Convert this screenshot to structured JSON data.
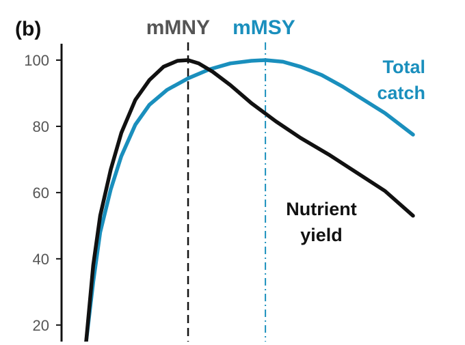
{
  "panel_label": "(b)",
  "colors": {
    "nutrient_yield": "#111111",
    "total_catch": "#1a8fbd",
    "mmny_line": "#111111",
    "mmny_text": "#555555",
    "mmsy_line": "#1a8fbd",
    "axis": "#111111"
  },
  "chart_data": {
    "type": "line",
    "xlabel": "",
    "ylabel": "",
    "xlim": [
      0,
      100
    ],
    "ylim": [
      15,
      100
    ],
    "yticks": [
      20,
      40,
      60,
      80,
      100
    ],
    "grid": false,
    "reference_lines": [
      {
        "label": "mMNY",
        "x": 36,
        "style": "dashed"
      },
      {
        "label": "mMSY",
        "x": 58,
        "style": "dash-dot"
      }
    ],
    "series": [
      {
        "name": "Nutrient yield",
        "label_lines": [
          "Nutrient",
          "yield"
        ],
        "x": [
          7,
          9,
          11,
          14,
          17,
          21,
          25,
          29,
          33,
          36,
          39,
          43,
          48,
          54,
          61,
          68,
          76,
          84,
          92,
          100
        ],
        "y": [
          15,
          38,
          53,
          67,
          78,
          88,
          94,
          98,
          99.8,
          100,
          99,
          96.5,
          92.5,
          87,
          81.5,
          76.5,
          71.5,
          66,
          60.5,
          53
        ]
      },
      {
        "name": "Total catch",
        "label_lines": [
          "Total",
          "catch"
        ],
        "x": [
          7,
          9,
          11,
          14,
          17,
          21,
          25,
          30,
          36,
          42,
          48,
          54,
          58,
          63,
          68,
          74,
          80,
          86,
          92,
          100
        ],
        "y": [
          15,
          33,
          48,
          61,
          71,
          80.5,
          86.5,
          91,
          94.5,
          97.2,
          99,
          99.8,
          100,
          99.5,
          98,
          95.5,
          92,
          88,
          84,
          77.5
        ]
      }
    ]
  }
}
